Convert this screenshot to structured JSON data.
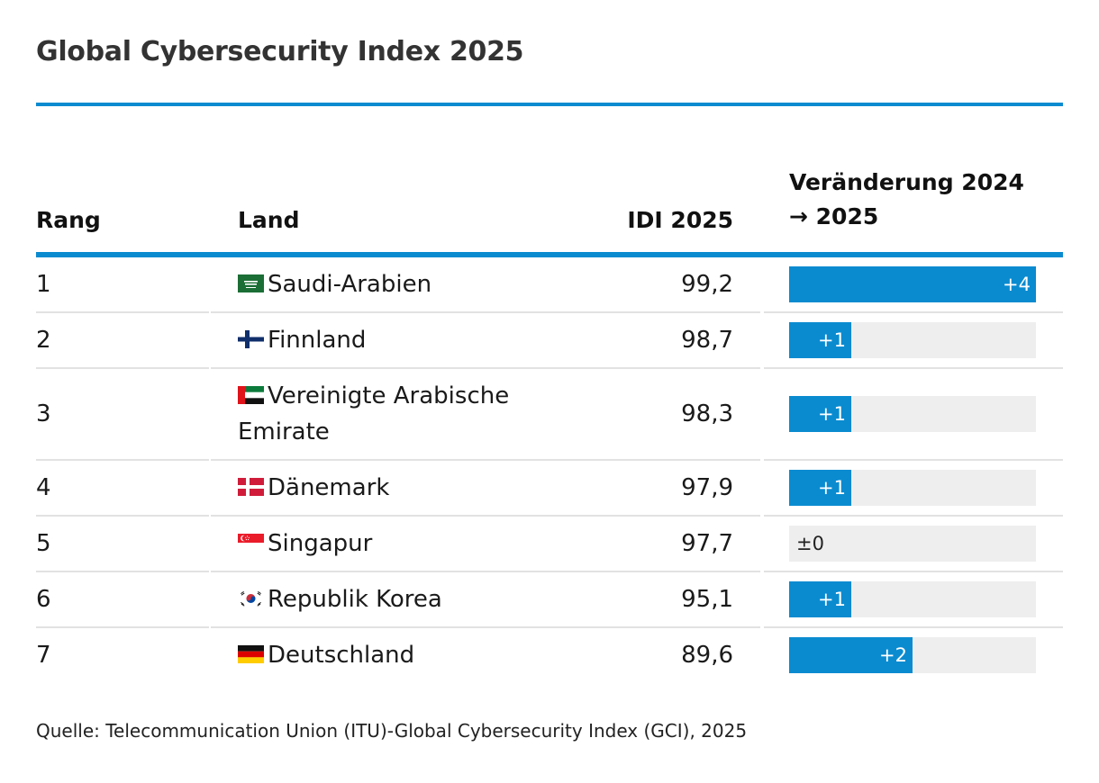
{
  "title": "Global Cybersecurity Index 2025",
  "headers": {
    "rank": "Rang",
    "country": "Land",
    "idi": "IDI 2025",
    "change_line1": "Veränderung 2024",
    "change_line2": "→ 2025"
  },
  "colors": {
    "accent": "#0a8bd0",
    "track": "#eeeeee"
  },
  "chart_data": {
    "type": "table",
    "title": "Global Cybersecurity Index 2025",
    "columns": [
      "Rang",
      "Land",
      "IDI 2025",
      "Veränderung 2024 → 2025"
    ],
    "max_change": 4,
    "rows": [
      {
        "rank": "1",
        "country": "Saudi-Arabien",
        "flag": "saudi-arabia-flag-icon",
        "idi": "99,2",
        "change": 4,
        "change_label": "+4"
      },
      {
        "rank": "2",
        "country": "Finnland",
        "flag": "finland-flag-icon",
        "idi": "98,7",
        "change": 1,
        "change_label": "+1"
      },
      {
        "rank": "3",
        "country": "Vereinigte Arabische Emirate",
        "flag": "uae-flag-icon",
        "idi": "98,3",
        "change": 1,
        "change_label": "+1"
      },
      {
        "rank": "4",
        "country": "Dänemark",
        "flag": "denmark-flag-icon",
        "idi": "97,9",
        "change": 1,
        "change_label": "+1"
      },
      {
        "rank": "5",
        "country": "Singapur",
        "flag": "singapore-flag-icon",
        "idi": "97,7",
        "change": 0,
        "change_label": "±0"
      },
      {
        "rank": "6",
        "country": "Republik Korea",
        "flag": "south-korea-flag-icon",
        "idi": "95,1",
        "change": 1,
        "change_label": "+1"
      },
      {
        "rank": "7",
        "country": "Deutschland",
        "flag": "germany-flag-icon",
        "idi": "89,6",
        "change": 2,
        "change_label": "+2"
      }
    ]
  },
  "source": "Quelle: Telecommunication Union (ITU)-Global Cybersecurity Index (GCI), 2025"
}
